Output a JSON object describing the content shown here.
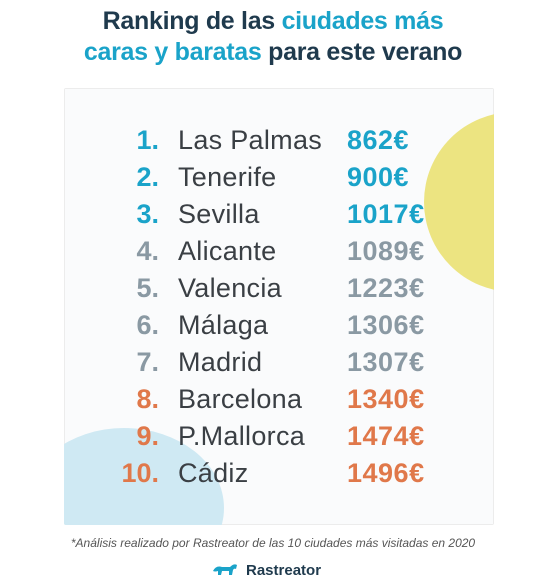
{
  "title": {
    "line1_a": "Ranking de las ",
    "line1_b": "ciudades más",
    "line2_a": "caras y baratas",
    "line2_b": " para este verano"
  },
  "colors": {
    "cheap": "#1aa3c9",
    "mid": "#8a99a3",
    "expensive": "#e0784a"
  },
  "ranking": [
    {
      "rank": "1.",
      "city": "Las Palmas",
      "price": "862€",
      "tier": "cheap"
    },
    {
      "rank": "2.",
      "city": "Tenerife",
      "price": "900€",
      "tier": "cheap"
    },
    {
      "rank": "3.",
      "city": "Sevilla",
      "price": "1017€",
      "tier": "cheap"
    },
    {
      "rank": "4.",
      "city": "Alicante",
      "price": "1089€",
      "tier": "mid"
    },
    {
      "rank": "5.",
      "city": "Valencia",
      "price": "1223€",
      "tier": "mid"
    },
    {
      "rank": "6.",
      "city": "Málaga",
      "price": "1306€",
      "tier": "mid"
    },
    {
      "rank": "7.",
      "city": "Madrid",
      "price": "1307€",
      "tier": "mid"
    },
    {
      "rank": "8.",
      "city": "Barcelona",
      "price": "1340€",
      "tier": "expensive"
    },
    {
      "rank": "9.",
      "city": "P.Mallorca",
      "price": "1474€",
      "tier": "expensive"
    },
    {
      "rank": "10.",
      "city": "Cádiz",
      "price": "1496€",
      "tier": "expensive"
    }
  ],
  "footnote": "*Análisis realizado por Rastreator de las 10 ciudades más visitadas en 2020",
  "brand": {
    "name": "Rastreator",
    "icon": "dog-icon"
  }
}
